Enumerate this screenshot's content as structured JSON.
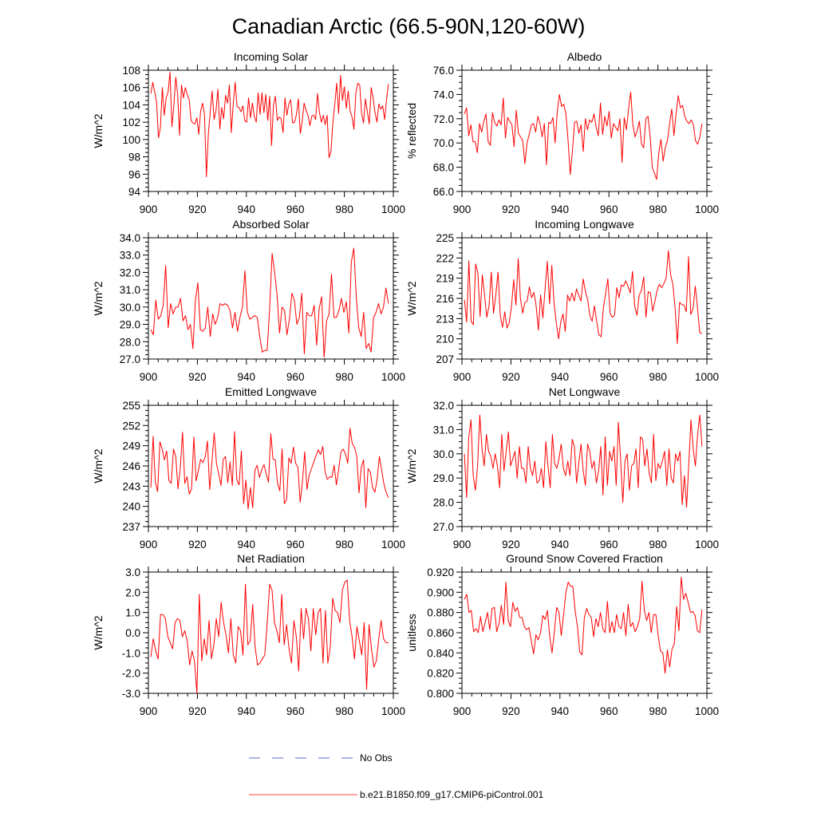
{
  "title": "Canadian Arctic (66.5-90N,120-60W)",
  "legend": [
    {
      "label": "No Obs",
      "color": "#5b6bd1",
      "dash": true
    },
    {
      "label": "b.e21.B1850.f09_g17.CMIP6-piControl.001",
      "color": "#ff0000",
      "dash": false
    }
  ],
  "series_color": "#ff0000",
  "chart_data": [
    {
      "type": "line",
      "title": "Incoming Solar",
      "ylabel": "W/m^2",
      "xlim": [
        900,
        1000
      ],
      "ylim": [
        94,
        108
      ],
      "yticks": [
        94,
        96,
        98,
        100,
        102,
        104,
        106,
        108
      ],
      "ytick_labels": [
        "94",
        "96",
        "98",
        "100",
        "102",
        "104",
        "106",
        "108"
      ],
      "xticks": [
        900,
        920,
        940,
        960,
        980,
        1000
      ],
      "xtick_labels": [
        "900",
        "920",
        "940",
        "960",
        "980",
        "1000"
      ],
      "x_start": 901,
      "values": [
        105.3,
        106.6,
        105.5,
        104.3,
        100.2,
        101.4,
        106.0,
        102.8,
        104.8,
        105.5,
        107.8,
        101.5,
        103.9,
        107.2,
        105.2,
        100.5,
        106.3,
        104.8,
        106.0,
        105.2,
        104.6,
        102.2,
        101.9,
        101.8,
        102.5,
        100.6,
        103.3,
        104.2,
        102.9,
        95.7,
        100.6,
        103.2,
        105.6,
        102.3,
        103.3,
        105.8,
        101.2,
        103.7,
        102.4,
        105.1,
        104.2,
        106.3,
        100.8,
        104.1,
        106.6,
        103.8,
        103.7,
        103.2,
        103.9,
        102.2,
        102.0,
        104.8,
        102.5,
        104.2,
        102.7,
        102.0,
        105.4,
        102.9,
        105.4,
        103.1,
        105.2,
        102.2,
        105.0,
        99.3,
        104.0,
        105.0,
        102.2,
        102.6,
        102.4,
        100.8,
        104.8,
        102.8,
        104.1,
        104.6,
        101.9,
        102.0,
        102.9,
        104.7,
        100.7,
        102.1,
        104.2,
        103.4,
        102.8,
        101.6,
        102.7,
        102.8,
        102.3,
        105.3,
        103.1,
        102.0,
        102.8,
        101.7,
        102.8,
        97.9,
        98.6,
        102.0,
        104.1,
        106.5,
        103.0,
        107.4,
        104.5,
        106.1,
        103.6,
        105.6,
        103.3,
        102.6,
        101.2,
        105.4,
        106.5,
        106.3,
        103.0,
        101.9,
        104.7,
        103.2,
        101.8,
        106.0,
        104.8,
        103.1,
        102.0,
        104.1,
        103.5,
        103.9,
        102.3,
        104.6,
        106.4
      ]
    },
    {
      "type": "line",
      "title": "Albedo",
      "ylabel": "% reflected",
      "xlim": [
        900,
        1000
      ],
      "ylim": [
        66,
        76
      ],
      "yticks": [
        66,
        68,
        70,
        72,
        74,
        76
      ],
      "ytick_labels": [
        "66.0",
        "68.0",
        "70.0",
        "72.0",
        "74.0",
        "76.0"
      ],
      "xticks": [
        900,
        920,
        940,
        960,
        980,
        1000
      ],
      "xtick_labels": [
        "900",
        "920",
        "940",
        "960",
        "980",
        "1000"
      ],
      "x_start": 901,
      "values": [
        72.4,
        72.9,
        70.6,
        71.5,
        70.1,
        70.1,
        69.2,
        71.6,
        70.9,
        71.8,
        72.4,
        70.1,
        69.8,
        72.5,
        71.7,
        71.4,
        71.9,
        71.5,
        73.7,
        70.4,
        72.1,
        71.8,
        71.5,
        69.7,
        72.7,
        70.8,
        70.5,
        70.2,
        68.3,
        70.0,
        70.7,
        71.5,
        71.6,
        70.9,
        72.2,
        71.6,
        70.5,
        71.6,
        68.2,
        71.7,
        71.6,
        72.1,
        70.0,
        72.6,
        74.0,
        73.0,
        73.2,
        72.4,
        70.2,
        67.4,
        69.3,
        71.7,
        71.8,
        70.8,
        71.5,
        69.3,
        72.0,
        71.1,
        71.9,
        71.7,
        72.4,
        71.3,
        70.6,
        73.3,
        70.7,
        72.2,
        71.4,
        72.6,
        70.4,
        71.6,
        71.3,
        71.0,
        72.0,
        68.4,
        72.1,
        71.1,
        72.8,
        74.2,
        71.5,
        70.5,
        71.0,
        71.8,
        69.9,
        69.6,
        72.0,
        72.2,
        70.5,
        68.0,
        67.5,
        67.0,
        69.2,
        70.3,
        68.5,
        69.6,
        70.2,
        71.6,
        72.8,
        70.6,
        72.4,
        73.9,
        72.9,
        73.1,
        72.2,
        71.8,
        71.6,
        71.9,
        71.5,
        70.2,
        69.9,
        70.5,
        71.6
      ]
    },
    {
      "type": "line",
      "title": "Absorbed Solar",
      "ylabel": "W/m^2",
      "xlim": [
        900,
        1000
      ],
      "ylim": [
        27,
        34
      ],
      "yticks": [
        27,
        28,
        29,
        30,
        31,
        32,
        33,
        34
      ],
      "ytick_labels": [
        "27.0",
        "28.0",
        "29.0",
        "30.0",
        "31.0",
        "32.0",
        "33.0",
        "34.0"
      ],
      "xticks": [
        900,
        920,
        940,
        960,
        980,
        1000
      ],
      "xtick_labels": [
        "900",
        "920",
        "940",
        "960",
        "980",
        "1000"
      ],
      "x_start": 901,
      "values": [
        28.7,
        28.4,
        30.4,
        29.3,
        29.5,
        30.1,
        32.4,
        28.8,
        30.2,
        29.6,
        30.0,
        30.0,
        30.5,
        29.2,
        29.5,
        28.7,
        29.0,
        27.6,
        30.4,
        31.4,
        28.7,
        28.6,
        28.8,
        30.0,
        28.3,
        29.6,
        29.0,
        29.4,
        30.2,
        30.1,
        30.2,
        30.1,
        29.8,
        28.8,
        29.7,
        28.6,
        29.4,
        30.0,
        32.1,
        29.7,
        29.3,
        29.4,
        29.5,
        29.4,
        28.3,
        27.4,
        27.5,
        27.5,
        29.9,
        33.1,
        32.0,
        30.7,
        28.5,
        30.0,
        29.8,
        28.4,
        29.3,
        30.8,
        30.4,
        29.0,
        29.4,
        30.8,
        27.3,
        29.7,
        29.5,
        29.5,
        30.1,
        27.8,
        29.9,
        30.6,
        27.1,
        29.2,
        29.6,
        31.9,
        29.4,
        29.4,
        29.8,
        30.5,
        29.7,
        30.3,
        28.5,
        32.6,
        33.4,
        30.6,
        28.8,
        28.3,
        29.7,
        27.6,
        27.9,
        27.4,
        29.4,
        29.7,
        30.2,
        29.6,
        30.0,
        31.1,
        30.2
      ]
    },
    {
      "type": "line",
      "title": "Incoming Longwave",
      "ylabel": "W/m^2",
      "xlim": [
        900,
        1000
      ],
      "ylim": [
        207,
        225
      ],
      "yticks": [
        207,
        210,
        213,
        216,
        219,
        222,
        225
      ],
      "ytick_labels": [
        "207",
        "210",
        "213",
        "216",
        "219",
        "222",
        "225"
      ],
      "xticks": [
        900,
        920,
        940,
        960,
        980,
        1000
      ],
      "xtick_labels": [
        "900",
        "920",
        "940",
        "960",
        "980",
        "1000"
      ],
      "x_start": 901,
      "values": [
        215.8,
        212.5,
        221.6,
        212.6,
        212.1,
        221.1,
        219.8,
        213.3,
        219.5,
        216.5,
        213.2,
        214.9,
        219.9,
        213.8,
        216.5,
        219.9,
        213.5,
        211.7,
        214.0,
        211.6,
        212.4,
        214.8,
        218.8,
        215.0,
        221.9,
        216.0,
        213.8,
        215.4,
        215.6,
        217.7,
        216.1,
        216.9,
        214.9,
        211.3,
        216.5,
        213.1,
        217.4,
        221.5,
        215.2,
        220.9,
        215.3,
        212.4,
        210.0,
        212.5,
        213.7,
        211.1,
        216.5,
        215.6,
        216.8,
        215.6,
        217.4,
        216.5,
        215.6,
        218.9,
        217.0,
        215.8,
        213.4,
        212.6,
        214.9,
        212.6,
        210.6,
        210.3,
        214.6,
        216.7,
        218.9,
        213.8,
        213.2,
        213.5,
        217.6,
        216.1,
        218.0,
        217.8,
        218.6,
        217.8,
        216.8,
        220.0,
        214.8,
        213.5,
        216.5,
        217.2,
        219.2,
        213.2,
        217.0,
        216.8,
        214.1,
        215.6,
        217.2,
        218.1,
        217.6,
        218.2,
        219.0,
        223.1,
        219.5,
        218.1,
        214.6,
        209.3,
        215.4,
        215.1,
        215.0,
        214.0,
        222.2,
        213.6,
        214.5,
        217.8,
        214.6,
        210.9,
        210.8
      ]
    },
    {
      "type": "line",
      "title": "Emitted Longwave",
      "ylabel": "W/m^2",
      "xlim": [
        900,
        1000
      ],
      "ylim": [
        237,
        255
      ],
      "yticks": [
        237,
        240,
        243,
        246,
        249,
        252,
        255
      ],
      "ytick_labels": [
        "237",
        "240",
        "243",
        "246",
        "249",
        "252",
        "255"
      ],
      "xticks": [
        900,
        920,
        940,
        960,
        980,
        1000
      ],
      "xtick_labels": [
        "900",
        "920",
        "940",
        "960",
        "980",
        "1000"
      ],
      "x_start": 901,
      "values": [
        242.8,
        250.4,
        243.6,
        242.2,
        249.6,
        248.5,
        246.9,
        248.2,
        243.8,
        243.4,
        248.5,
        247.4,
        242.6,
        245.6,
        251.0,
        243.4,
        244.4,
        241.8,
        242.6,
        250.3,
        243.8,
        245.3,
        247.0,
        246.5,
        247.3,
        249.7,
        242.5,
        246.6,
        250.9,
        246.4,
        244.8,
        243.1,
        247.0,
        247.4,
        243.5,
        246.6,
        243.1,
        251.1,
        243.9,
        243.2,
        248.2,
        240.4,
        243.9,
        239.6,
        242.8,
        239.8,
        245.4,
        246.1,
        244.3,
        245.4,
        246.2,
        244.8,
        243.6,
        250.8,
        247.0,
        246.9,
        243.4,
        242.3,
        248.5,
        240.4,
        241.0,
        247.2,
        246.4,
        248.8,
        246.4,
        245.8,
        240.6,
        243.7,
        248.1,
        242.5,
        244.7,
        245.6,
        246.6,
        247.5,
        248.4,
        247.7,
        248.9,
        245.1,
        244.0,
        244.4,
        244.3,
        246.1,
        243.2,
        245.5,
        248.1,
        248.5,
        247.8,
        246.4,
        251.6,
        249.3,
        248.8,
        247.4,
        242.0,
        245.8,
        246.9,
        239.8,
        245.6,
        245.1,
        242.8,
        242.1,
        244.0,
        247.4,
        245.4,
        243.3,
        242.1,
        241.3
      ]
    },
    {
      "type": "line",
      "title": "Net Longwave",
      "ylabel": "W/m^2",
      "xlim": [
        900,
        1000
      ],
      "ylim": [
        27,
        32
      ],
      "yticks": [
        27,
        28,
        29,
        30,
        31,
        32
      ],
      "ytick_labels": [
        "27.0",
        "28.0",
        "29.0",
        "30.0",
        "31.0",
        "32.0"
      ],
      "xticks": [
        900,
        920,
        940,
        960,
        980,
        1000
      ],
      "xtick_labels": [
        "900",
        "920",
        "940",
        "960",
        "980",
        "1000"
      ],
      "x_start": 901,
      "values": [
        30.0,
        28.2,
        30.7,
        31.4,
        29.1,
        28.5,
        29.5,
        31.6,
        30.2,
        29.5,
        30.8,
        30.1,
        29.9,
        29.4,
        30.0,
        29.5,
        28.6,
        30.8,
        29.3,
        30.1,
        30.9,
        29.5,
        29.8,
        30.1,
        29.0,
        30.3,
        29.4,
        29.4,
        28.8,
        30.3,
        29.4,
        29.1,
        29.7,
        28.8,
        28.9,
        29.4,
        28.6,
        30.5,
        29.5,
        28.6,
        30.8,
        29.6,
        29.4,
        29.8,
        30.4,
        29.4,
        29.1,
        29.7,
        29.1,
        30.6,
        30.3,
        28.8,
        29.6,
        30.4,
        29.3,
        28.7,
        30.4,
        30.1,
        29.4,
        29.7,
        28.8,
        29.3,
        30.3,
        28.3,
        30.7,
        28.7,
        30.1,
        29.7,
        30.3,
        28.7,
        31.3,
        29.8,
        28.0,
        29.7,
        30.0,
        28.5,
        29.5,
        29.6,
        30.2,
        28.6,
        30.7,
        30.6,
        29.5,
        30.2,
        29.2,
        28.8,
        30.8,
        28.9,
        29.6,
        29.4,
        29.7,
        30.1,
        28.7,
        30.2,
        29.0,
        28.8,
        30.0,
        29.7,
        30.1,
        27.9,
        29.1,
        27.8,
        29.6,
        31.4,
        30.2,
        29.5,
        30.8,
        31.6,
        30.3
      ]
    },
    {
      "type": "line",
      "title": "Net Radiation",
      "ylabel": "W/m^2",
      "xlim": [
        900,
        1000
      ],
      "ylim": [
        -3,
        3
      ],
      "yticks": [
        -3,
        -2,
        -1,
        0,
        1,
        2,
        3
      ],
      "ytick_labels": [
        "-3.0",
        "-2.0",
        "-1.0",
        "0.0",
        "1.0",
        "2.0",
        "3.0"
      ],
      "xticks": [
        900,
        920,
        940,
        960,
        980,
        1000
      ],
      "xtick_labels": [
        "900",
        "920",
        "940",
        "960",
        "980",
        "1000"
      ],
      "x_start": 901,
      "values": [
        -1.2,
        -0.3,
        -0.9,
        -1.3,
        0.9,
        0.9,
        0.7,
        -0.2,
        -0.5,
        -0.8,
        0.5,
        0.7,
        0.6,
        -0.2,
        0.1,
        -0.4,
        -1.6,
        -0.9,
        -1.4,
        -3.0,
        1.9,
        -1.4,
        -0.3,
        -1.1,
        0.6,
        -1.3,
        -0.6,
        0.7,
        -0.2,
        1.5,
        0.5,
        -0.1,
        -1.0,
        0.7,
        -1.1,
        -1.5,
        0.3,
        0.1,
        -1.1,
        2.4,
        -0.6,
        -0.4,
        1.4,
        -0.7,
        -1.6,
        -1.5,
        -1.3,
        -1.1,
        0.5,
        2.4,
        2.1,
        0.5,
        0.1,
        -0.5,
        1.9,
        -0.6,
        0.4,
        -0.8,
        -1.5,
        0.6,
        -0.2,
        -1.9,
        1.2,
        -0.3,
        1.2,
        0.7,
        -0.9,
        1.2,
        -0.1,
        1.0,
        1.2,
        -1.5,
        1.1,
        -1.5,
        -0.7,
        1.7,
        1.1,
        1.0,
        0.5,
        2.1,
        2.5,
        2.6,
        0.6,
        -0.2,
        -1.3,
        0.3,
        -0.4,
        -1.1,
        0.5,
        -2.8,
        0.4,
        -0.8,
        -1.7,
        -1.4,
        -0.3,
        0.6,
        -0.3,
        -0.5,
        -0.5
      ]
    },
    {
      "type": "line",
      "title": "Ground Snow Covered Fraction",
      "ylabel": "unitless",
      "xlim": [
        900,
        1000
      ],
      "ylim": [
        0.8,
        0.92
      ],
      "yticks": [
        0.8,
        0.82,
        0.84,
        0.86,
        0.88,
        0.9,
        0.92
      ],
      "ytick_labels": [
        "0.800",
        "0.820",
        "0.840",
        "0.860",
        "0.880",
        "0.900",
        "0.920"
      ],
      "xticks": [
        900,
        920,
        940,
        960,
        980,
        1000
      ],
      "xtick_labels": [
        "900",
        "920",
        "940",
        "960",
        "980",
        "1000"
      ],
      "x_start": 901,
      "values": [
        0.893,
        0.898,
        0.88,
        0.882,
        0.861,
        0.864,
        0.86,
        0.876,
        0.861,
        0.87,
        0.88,
        0.863,
        0.884,
        0.885,
        0.861,
        0.869,
        0.887,
        0.868,
        0.91,
        0.872,
        0.866,
        0.89,
        0.881,
        0.885,
        0.875,
        0.875,
        0.866,
        0.863,
        0.865,
        0.852,
        0.839,
        0.858,
        0.853,
        0.86,
        0.877,
        0.873,
        0.882,
        0.856,
        0.84,
        0.861,
        0.885,
        0.88,
        0.857,
        0.878,
        0.9,
        0.91,
        0.906,
        0.906,
        0.882,
        0.866,
        0.841,
        0.838,
        0.875,
        0.884,
        0.878,
        0.875,
        0.856,
        0.874,
        0.866,
        0.88,
        0.864,
        0.86,
        0.891,
        0.86,
        0.871,
        0.86,
        0.878,
        0.866,
        0.864,
        0.88,
        0.857,
        0.888,
        0.866,
        0.87,
        0.861,
        0.866,
        0.874,
        0.911,
        0.882,
        0.872,
        0.88,
        0.86,
        0.878,
        0.878,
        0.857,
        0.842,
        0.84,
        0.82,
        0.843,
        0.826,
        0.844,
        0.849,
        0.886,
        0.862,
        0.915,
        0.893,
        0.899,
        0.89,
        0.88,
        0.881,
        0.877,
        0.862,
        0.86,
        0.883
      ]
    }
  ]
}
